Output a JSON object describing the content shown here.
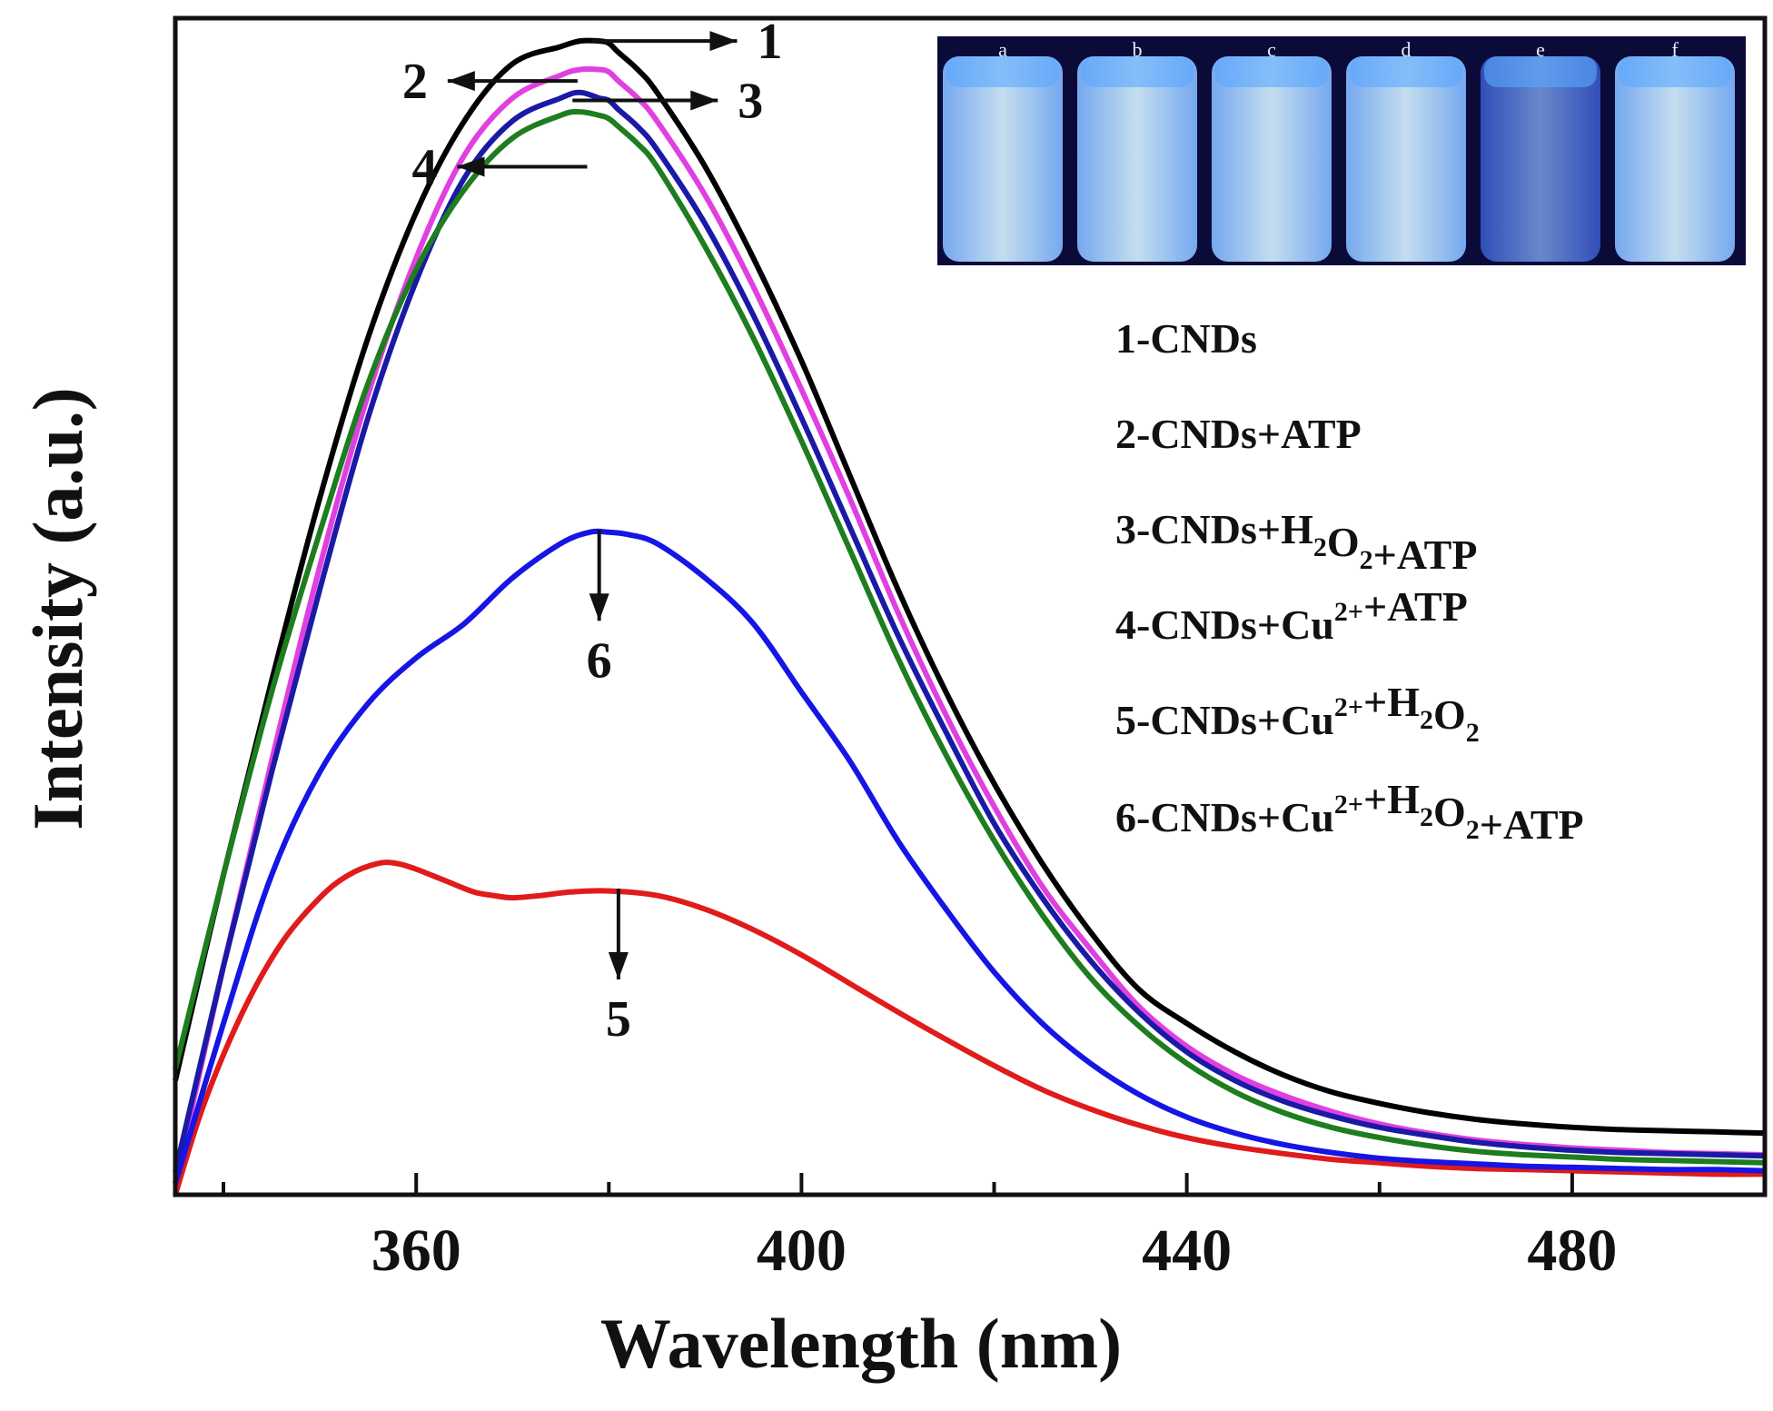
{
  "chart_data": {
    "type": "line",
    "xlabel": "Wavelength (nm)",
    "ylabel": "Intensity (a.u.)",
    "xlim": [
      335,
      500
    ],
    "ylim": [
      0,
      1.03
    ],
    "xticks": [
      360,
      400,
      440,
      480
    ],
    "yticks": [],
    "grid": false,
    "legend_position": "right",
    "series": [
      {
        "id": "1",
        "name": "1-CNDs",
        "color": "#000000",
        "x": [
          335,
          340,
          345,
          350,
          355,
          360,
          365,
          370,
          375,
          377,
          379,
          380,
          381,
          383,
          385,
          390,
          395,
          400,
          405,
          410,
          415,
          420,
          425,
          430,
          435,
          440,
          445,
          450,
          455,
          460,
          465,
          470,
          475,
          480,
          485,
          490,
          495,
          500
        ],
        "y": [
          0.1,
          0.28,
          0.45,
          0.61,
          0.75,
          0.86,
          0.94,
          0.99,
          1.005,
          1.01,
          1.01,
          1.008,
          1.0,
          0.985,
          0.965,
          0.9,
          0.82,
          0.73,
          0.63,
          0.53,
          0.44,
          0.36,
          0.29,
          0.23,
          0.18,
          0.15,
          0.125,
          0.105,
          0.09,
          0.08,
          0.072,
          0.066,
          0.062,
          0.059,
          0.057,
          0.056,
          0.055,
          0.054
        ]
      },
      {
        "id": "2",
        "name": "2-CNDs+ATP",
        "color": "#e040e0",
        "x": [
          335,
          340,
          345,
          350,
          355,
          360,
          365,
          370,
          375,
          377,
          379,
          380,
          381,
          383,
          385,
          390,
          395,
          400,
          405,
          410,
          415,
          420,
          425,
          430,
          435,
          440,
          445,
          450,
          455,
          460,
          465,
          470,
          475,
          480,
          485,
          490,
          495,
          500
        ],
        "y": [
          0.01,
          0.2,
          0.38,
          0.55,
          0.7,
          0.82,
          0.91,
          0.96,
          0.98,
          0.985,
          0.985,
          0.983,
          0.975,
          0.96,
          0.94,
          0.875,
          0.795,
          0.705,
          0.61,
          0.51,
          0.42,
          0.34,
          0.27,
          0.215,
          0.165,
          0.13,
          0.105,
          0.087,
          0.073,
          0.062,
          0.054,
          0.048,
          0.044,
          0.041,
          0.039,
          0.037,
          0.036,
          0.035
        ]
      },
      {
        "id": "3",
        "name": "3-CNDs+H2O2+ATP",
        "color": "#1a1aa6",
        "x": [
          335,
          340,
          345,
          350,
          355,
          360,
          365,
          370,
          375,
          377,
          379,
          380,
          381,
          383,
          385,
          390,
          395,
          400,
          405,
          410,
          415,
          420,
          425,
          430,
          435,
          440,
          445,
          450,
          455,
          460,
          465,
          470,
          475,
          480,
          485,
          490,
          495,
          500
        ],
        "y": [
          0.02,
          0.2,
          0.37,
          0.53,
          0.68,
          0.8,
          0.89,
          0.94,
          0.96,
          0.965,
          0.96,
          0.958,
          0.95,
          0.935,
          0.915,
          0.85,
          0.77,
          0.68,
          0.585,
          0.49,
          0.405,
          0.325,
          0.26,
          0.205,
          0.16,
          0.125,
          0.1,
          0.082,
          0.069,
          0.059,
          0.052,
          0.046,
          0.042,
          0.039,
          0.037,
          0.036,
          0.035,
          0.034
        ]
      },
      {
        "id": "4",
        "name": "4-CNDs+Cu2++ATP",
        "color": "#1e7d1e",
        "x": [
          335,
          340,
          345,
          350,
          355,
          360,
          365,
          370,
          375,
          377,
          379,
          380,
          381,
          383,
          385,
          390,
          395,
          400,
          405,
          410,
          415,
          420,
          425,
          430,
          435,
          440,
          445,
          450,
          455,
          460,
          465,
          470,
          475,
          480,
          485,
          490,
          495,
          500
        ],
        "y": [
          0.11,
          0.28,
          0.44,
          0.58,
          0.71,
          0.81,
          0.88,
          0.925,
          0.945,
          0.948,
          0.945,
          0.942,
          0.935,
          0.92,
          0.9,
          0.83,
          0.75,
          0.66,
          0.565,
          0.47,
          0.385,
          0.31,
          0.245,
          0.19,
          0.148,
          0.115,
          0.09,
          0.072,
          0.059,
          0.05,
          0.043,
          0.038,
          0.035,
          0.033,
          0.031,
          0.03,
          0.029,
          0.028
        ]
      },
      {
        "id": "5",
        "name": "5-CNDs+Cu2++H2O2",
        "color": "#e01b1b",
        "x": [
          335,
          338,
          342,
          346,
          350,
          353,
          356,
          358,
          360,
          363,
          366,
          368,
          370,
          373,
          376,
          380,
          385,
          390,
          395,
          400,
          405,
          410,
          415,
          420,
          425,
          430,
          435,
          440,
          445,
          450,
          455,
          460,
          465,
          470,
          475,
          480,
          485,
          490,
          495,
          500
        ],
        "y": [
          0.0,
          0.08,
          0.16,
          0.22,
          0.26,
          0.28,
          0.29,
          0.29,
          0.285,
          0.275,
          0.265,
          0.262,
          0.26,
          0.262,
          0.265,
          0.266,
          0.262,
          0.25,
          0.232,
          0.21,
          0.185,
          0.16,
          0.136,
          0.113,
          0.092,
          0.075,
          0.061,
          0.05,
          0.042,
          0.036,
          0.031,
          0.028,
          0.025,
          0.023,
          0.022,
          0.021,
          0.02,
          0.019,
          0.018,
          0.018
        ]
      },
      {
        "id": "6",
        "name": "6-CNDs+Cu2++H2O2+ATP",
        "color": "#1515e6",
        "x": [
          335,
          340,
          345,
          350,
          355,
          360,
          365,
          370,
          375,
          378,
          380,
          382,
          385,
          390,
          395,
          400,
          405,
          410,
          415,
          420,
          425,
          430,
          435,
          440,
          445,
          450,
          455,
          460,
          465,
          470,
          475,
          480,
          485,
          490,
          495,
          500
        ],
        "y": [
          0.01,
          0.15,
          0.28,
          0.37,
          0.43,
          0.47,
          0.5,
          0.54,
          0.57,
          0.58,
          0.58,
          0.578,
          0.57,
          0.54,
          0.5,
          0.44,
          0.38,
          0.31,
          0.25,
          0.195,
          0.15,
          0.115,
          0.088,
          0.068,
          0.054,
          0.044,
          0.037,
          0.032,
          0.029,
          0.027,
          0.025,
          0.024,
          0.023,
          0.022,
          0.022,
          0.021
        ]
      }
    ],
    "annotations": [
      {
        "label": "1",
        "tip_x": 382,
        "tip_y": 1.01,
        "dir": "right"
      },
      {
        "label": "2",
        "tip_x": 376,
        "tip_y": 0.975,
        "dir": "left"
      },
      {
        "label": "3",
        "tip_x": 380,
        "tip_y": 0.958,
        "dir": "right"
      },
      {
        "label": "4",
        "tip_x": 377,
        "tip_y": 0.9,
        "dir": "left"
      },
      {
        "label": "6",
        "tip_x": 379,
        "tip_y": 0.582,
        "dir": "down"
      },
      {
        "label": "5",
        "tip_x": 381,
        "tip_y": 0.268,
        "dir": "down"
      }
    ],
    "legend": [
      {
        "prefix": "1-CNDs",
        "parts": []
      },
      {
        "prefix": "2-CNDs+ATP",
        "parts": []
      },
      {
        "prefix": "3-CNDs+H",
        "parts": [
          {
            "t": "sub",
            "v": "2"
          },
          {
            "t": "n",
            "v": "O"
          },
          {
            "t": "sub",
            "v": "2"
          },
          {
            "t": "n",
            "v": "+ATP"
          }
        ]
      },
      {
        "prefix": "4-CNDs+Cu",
        "parts": [
          {
            "t": "sup",
            "v": "2+"
          },
          {
            "t": "n",
            "v": "+ATP"
          }
        ]
      },
      {
        "prefix": "5-CNDs+Cu",
        "parts": [
          {
            "t": "sup",
            "v": "2+"
          },
          {
            "t": "n",
            "v": "+H"
          },
          {
            "t": "sub",
            "v": "2"
          },
          {
            "t": "n",
            "v": "O"
          },
          {
            "t": "sub",
            "v": "2"
          }
        ]
      },
      {
        "prefix": "6-CNDs+Cu",
        "parts": [
          {
            "t": "sup",
            "v": "2+"
          },
          {
            "t": "n",
            "v": "+H"
          },
          {
            "t": "sub",
            "v": "2"
          },
          {
            "t": "n",
            "v": "O"
          },
          {
            "t": "sub",
            "v": "2"
          },
          {
            "t": "n",
            "v": "+ATP"
          }
        ]
      }
    ],
    "inset": {
      "vial_labels": [
        "a",
        "b",
        "c",
        "d",
        "e",
        "f"
      ],
      "vial_brightness": [
        "bright",
        "bright",
        "bright",
        "bright",
        "dim",
        "bright"
      ],
      "colors": {
        "background": "#0b0b3a",
        "vial": "#bfe6ff",
        "glow": "#5aa8ff"
      }
    }
  }
}
